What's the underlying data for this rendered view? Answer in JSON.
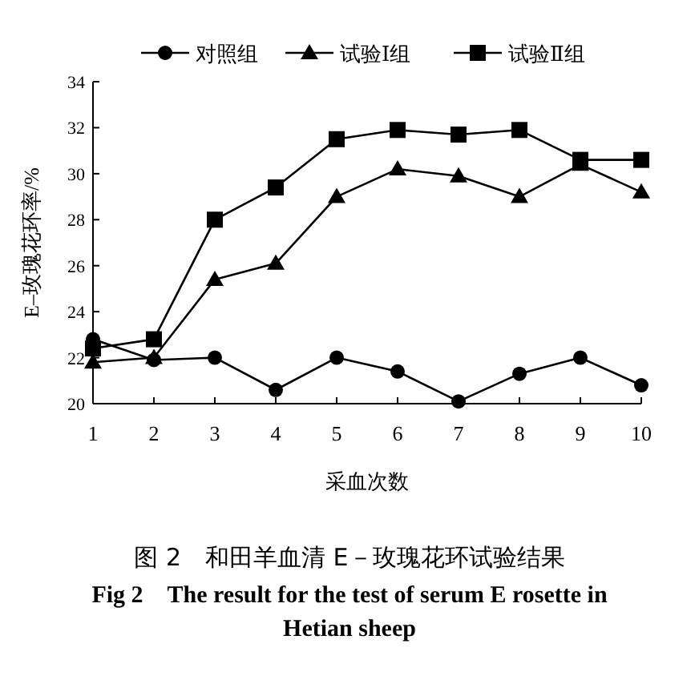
{
  "chart_data": {
    "type": "line",
    "title": "图 2　和田羊血清 E－玫瑰花环试验结果",
    "subtitle": "Fig 2　The result for the test of serum E rosette in Hetian sheep",
    "xlabel": "采血次数",
    "ylabel": "E–玫瑰花环率/%",
    "x": [
      1,
      2,
      3,
      4,
      5,
      6,
      7,
      8,
      9,
      10
    ],
    "xlim": [
      1,
      10
    ],
    "xticks": [
      1,
      2,
      3,
      4,
      5,
      6,
      7,
      8,
      9,
      10
    ],
    "ylim": [
      20,
      34
    ],
    "yticks": [
      20,
      22,
      24,
      26,
      28,
      30,
      32,
      34
    ],
    "legend": "top",
    "line_style": "solid",
    "series": [
      {
        "name": "对照组",
        "color": "#000000",
        "marker": "circle",
        "values": [
          22.8,
          21.9,
          22.0,
          20.6,
          22.0,
          21.4,
          20.1,
          21.3,
          22.0,
          20.8
        ]
      },
      {
        "name": "试验Ⅰ组",
        "color": "#000000",
        "marker": "triangle",
        "values": [
          21.8,
          22.0,
          25.4,
          26.1,
          29.0,
          30.2,
          29.9,
          29.0,
          30.4,
          29.2
        ]
      },
      {
        "name": "试验Ⅱ组",
        "color": "#000000",
        "marker": "square",
        "values": [
          22.4,
          22.8,
          28.0,
          29.4,
          31.5,
          31.9,
          31.7,
          31.9,
          30.6,
          30.6
        ]
      }
    ]
  }
}
